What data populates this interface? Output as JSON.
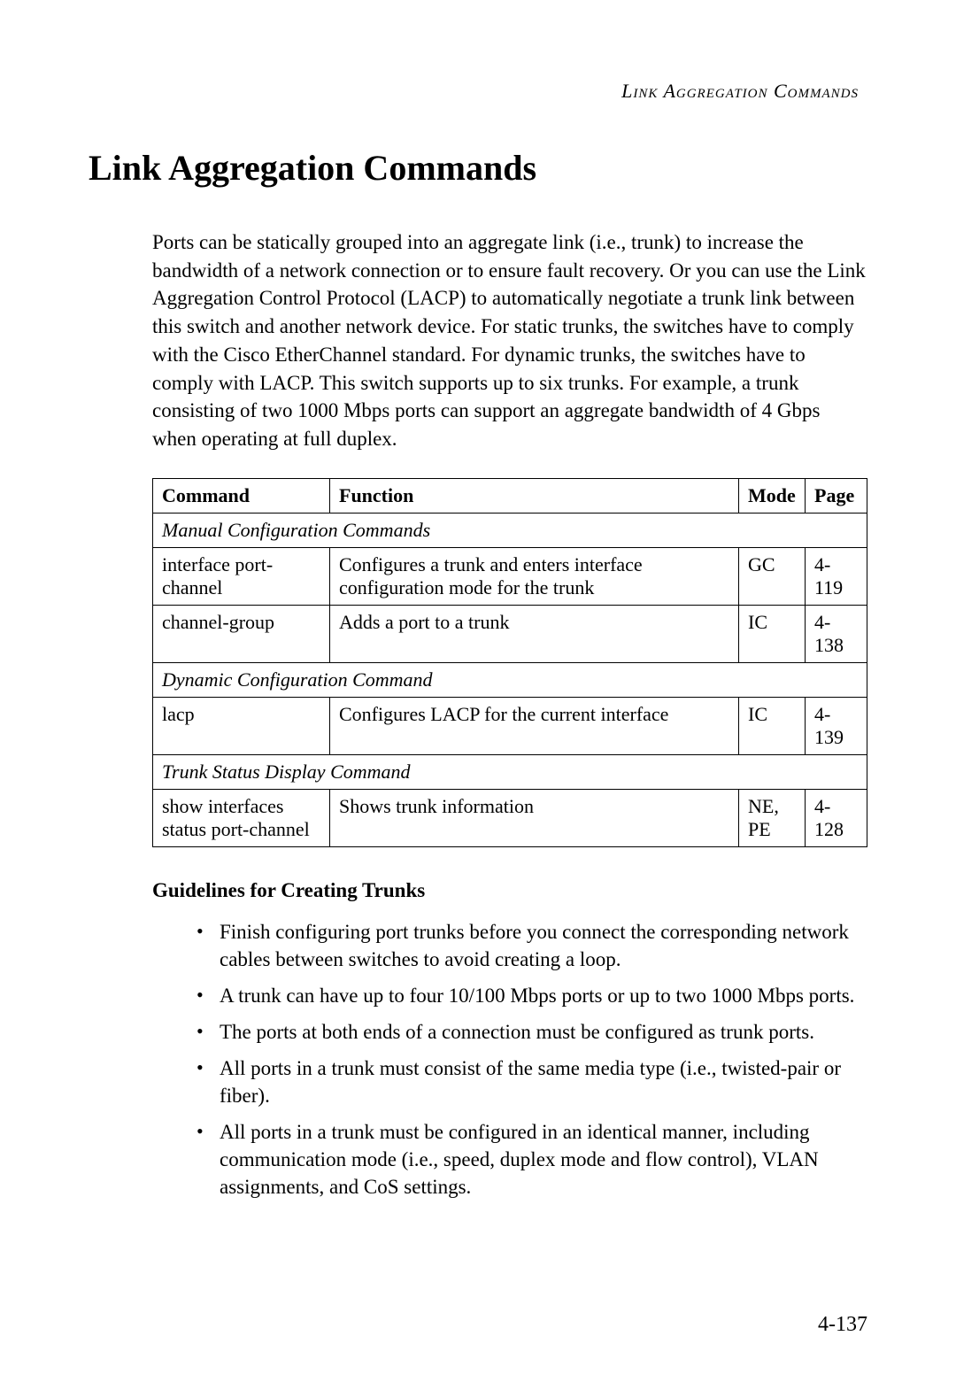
{
  "header": {
    "running_title": "Link Aggregation Commands"
  },
  "main": {
    "title": "Link Aggregation Commands",
    "intro": "Ports can be statically grouped into an aggregate link (i.e., trunk) to increase the bandwidth of a network connection or to ensure fault recovery. Or you can use the Link Aggregation Control Protocol (LACP) to automatically negotiate a trunk link between this switch and another network device. For static trunks, the switches have to comply with the Cisco EtherChannel standard. For dynamic trunks, the switches have to comply with LACP. This switch supports up to six trunks. For example, a trunk consisting of two 1000 Mbps ports can support an aggregate bandwidth of 4 Gbps when operating at full duplex.",
    "table": {
      "headers": {
        "command": "Command",
        "function": "Function",
        "mode": "Mode",
        "page": "Page"
      },
      "section1": "Manual Configuration Commands",
      "row1": {
        "command": "interface port-channel",
        "function": "Configures a trunk and enters interface configuration mode for the trunk",
        "mode": "GC",
        "page": "4-119"
      },
      "row2": {
        "command": "channel-group",
        "function": "Adds a port to a trunk",
        "mode": "IC",
        "page": "4-138"
      },
      "section2": "Dynamic Configuration Command",
      "row3": {
        "command": "lacp",
        "function": "Configures LACP for the current interface",
        "mode": "IC",
        "page": "4-139"
      },
      "section3": "Trunk Status Display Command",
      "row4": {
        "command": "show interfaces status port-channel",
        "function": "Shows trunk information",
        "mode": "NE, PE",
        "page": "4-128"
      }
    },
    "guidelines": {
      "heading": "Guidelines for Creating Trunks",
      "items": [
        "Finish configuring port trunks before you connect the corresponding network cables between switches to avoid creating a loop.",
        "A trunk can have up to four 10/100 Mbps ports or up to two 1000 Mbps ports.",
        "The ports at both ends of a connection must be configured as trunk ports.",
        "All ports in a trunk must consist of the same media type (i.e., twisted-pair or fiber).",
        "All ports in a trunk must be configured in an identical manner, including communication mode (i.e., speed, duplex mode and flow control), VLAN assignments, and CoS settings."
      ]
    }
  },
  "footer": {
    "page_number": "4-137"
  }
}
